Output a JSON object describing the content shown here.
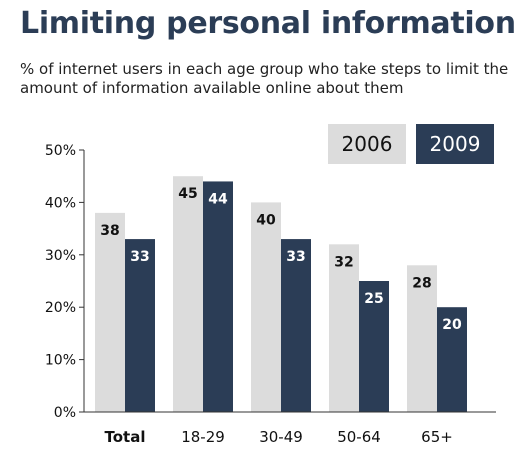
{
  "chart_data": {
    "type": "bar",
    "title": "Limiting personal information",
    "subtitle": "% of internet users in each age group who take steps to limit the amount of information available online about them",
    "categories": [
      "Total",
      "18-29",
      "30-49",
      "50-64",
      "65+"
    ],
    "bold_categories": [
      "Total"
    ],
    "series": [
      {
        "name": "2006",
        "color": "#dcdcdc",
        "label_color": "#111111",
        "values": [
          38,
          45,
          40,
          32,
          28
        ]
      },
      {
        "name": "2009",
        "color": "#2b3d56",
        "label_color": "#ffffff",
        "values": [
          33,
          44,
          33,
          25,
          20
        ]
      }
    ],
    "ylim": [
      0,
      50
    ],
    "yticks": [
      0,
      10,
      20,
      30,
      40,
      50
    ],
    "ytick_labels": [
      "0%",
      "10%",
      "20%",
      "30%",
      "40%",
      "50%"
    ],
    "legend_position": "top-right",
    "grid": false
  }
}
